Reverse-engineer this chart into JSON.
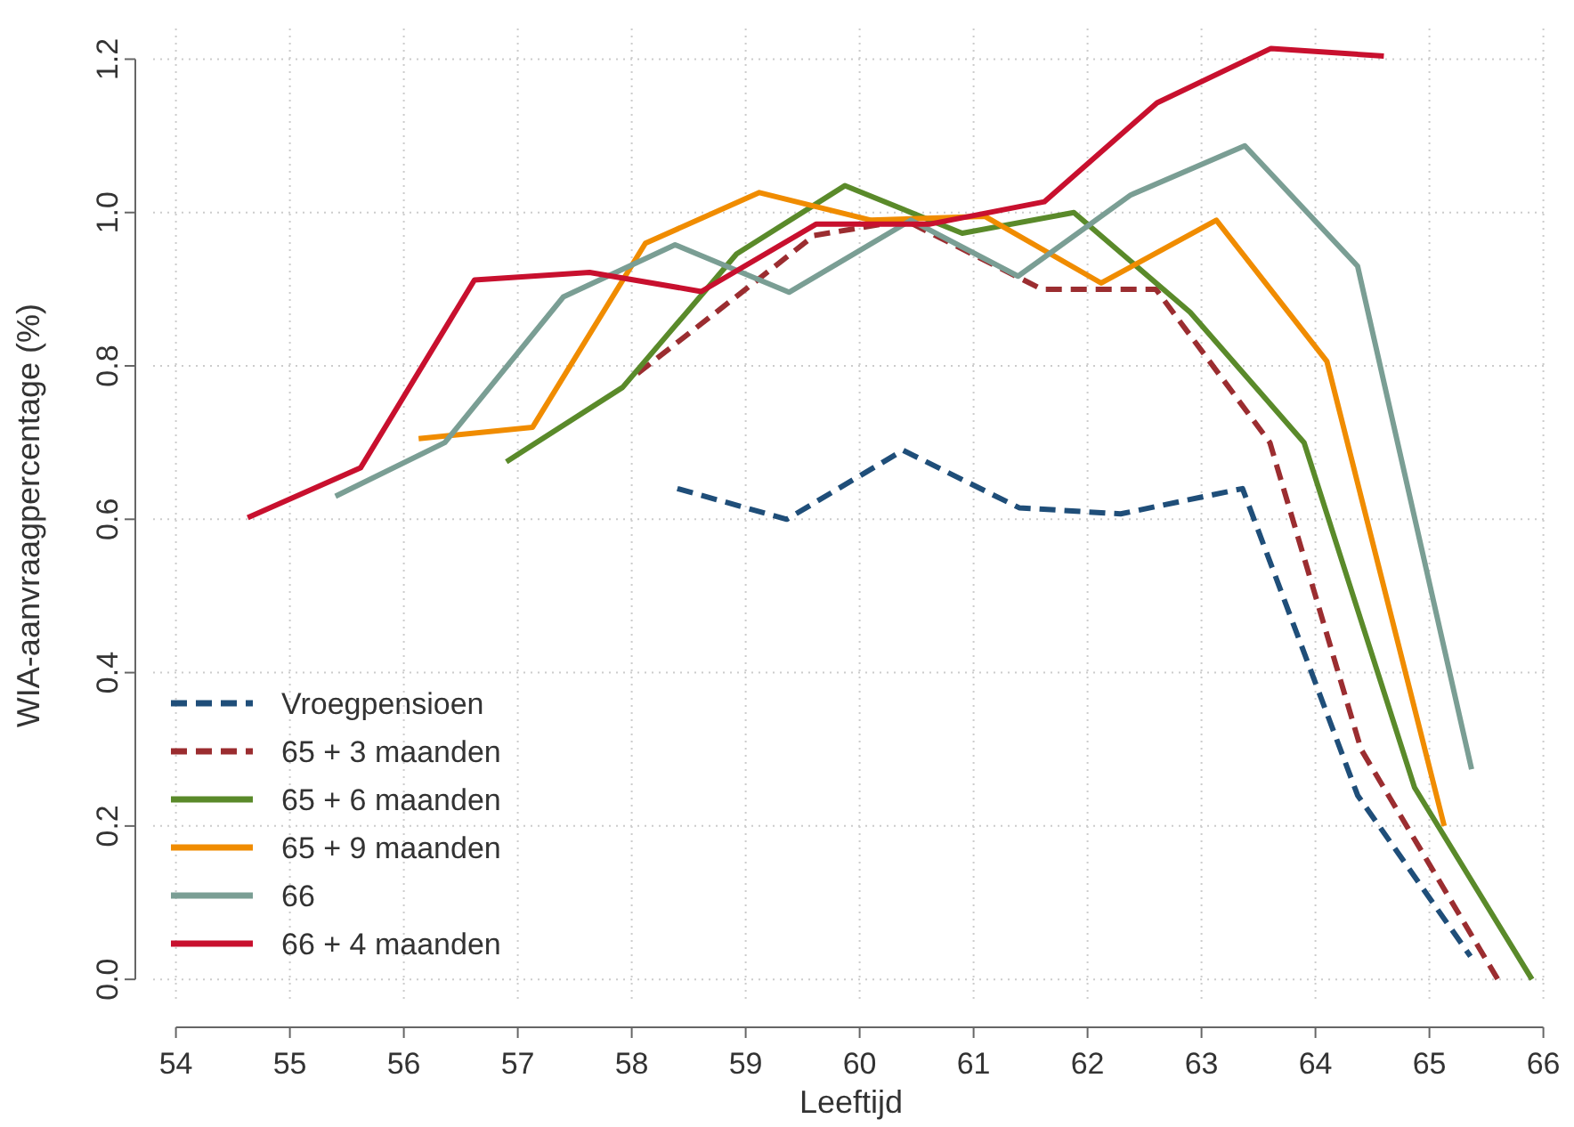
{
  "chart_data": {
    "type": "line",
    "xlabel": "Leeftijd",
    "ylabel": "WIA-aanvraagpercentage (%)",
    "xlim": [
      53.8,
      66.05
    ],
    "ylim": [
      -0.03,
      1.24
    ],
    "xticks": [
      54,
      55,
      56,
      57,
      58,
      59,
      60,
      61,
      62,
      63,
      64,
      65,
      66
    ],
    "yticks": [
      {
        "value": 0,
        "label": "0.0"
      },
      {
        "value": 0.2,
        "label": "0.2"
      },
      {
        "value": 0.4,
        "label": "0.4"
      },
      {
        "value": 0.6,
        "label": "0.6"
      },
      {
        "value": 0.8,
        "label": "0.8"
      },
      {
        "value": 1,
        "label": "1.0"
      },
      {
        "value": 1.2,
        "label": "1.2"
      }
    ],
    "grid": true,
    "legend": "bottom left",
    "series": [
      {
        "name": "Vroegpensioen",
        "color": "#1f4e79",
        "line_style": "dashed",
        "x": [
          58.4,
          59.36,
          60.38,
          61.4,
          62.29,
          63.36,
          64.37,
          65.36
        ],
        "values": [
          0.64,
          0.6,
          0.69,
          0.615,
          0.607,
          0.64,
          0.24,
          0.03
        ]
      },
      {
        "name": "65 + 3 maanden",
        "color": "#9b2d30",
        "line_style": "dashed",
        "x": [
          58.05,
          59.0,
          59.6,
          60.4,
          61.6,
          62.6,
          63.6,
          64.4,
          65.6
        ],
        "values": [
          0.79,
          0.9,
          0.97,
          0.99,
          0.9,
          0.9,
          0.7,
          0.3,
          0.0
        ]
      },
      {
        "name": "65 + 6 maanden",
        "color": "#5a8a2a",
        "x": [
          56.9,
          57.92,
          58.92,
          59.87,
          60.9,
          61.88,
          62.9,
          63.9,
          64.87,
          65.9
        ],
        "values": [
          0.675,
          0.772,
          0.946,
          1.035,
          0.973,
          1.0,
          0.87,
          0.7,
          0.25,
          0.0
        ]
      },
      {
        "name": "65 + 9 maanden",
        "color": "#f08c00",
        "x": [
          56.13,
          57.13,
          58.12,
          59.12,
          60.1,
          61.1,
          62.12,
          63.13,
          64.1,
          65.13
        ],
        "values": [
          0.705,
          0.72,
          0.96,
          1.026,
          0.99,
          0.995,
          0.908,
          0.99,
          0.806,
          0.2
        ]
      },
      {
        "name": "66",
        "color": "#7a9e94",
        "x": [
          55.4,
          56.36,
          57.4,
          58.38,
          59.38,
          60.45,
          61.39,
          62.38,
          63.38,
          64.37,
          65.37
        ],
        "values": [
          0.63,
          0.7,
          0.89,
          0.958,
          0.896,
          0.99,
          0.917,
          1.023,
          1.087,
          0.93,
          0.274
        ]
      },
      {
        "name": "66 + 4 maanden",
        "color": "#c8102e",
        "x": [
          54.63,
          55.62,
          56.62,
          57.63,
          58.61,
          59.62,
          60.62,
          61.62,
          62.61,
          63.61,
          64.6
        ],
        "values": [
          0.602,
          0.667,
          0.912,
          0.922,
          0.897,
          0.985,
          0.985,
          1.014,
          1.143,
          1.214,
          1.204
        ]
      }
    ]
  }
}
